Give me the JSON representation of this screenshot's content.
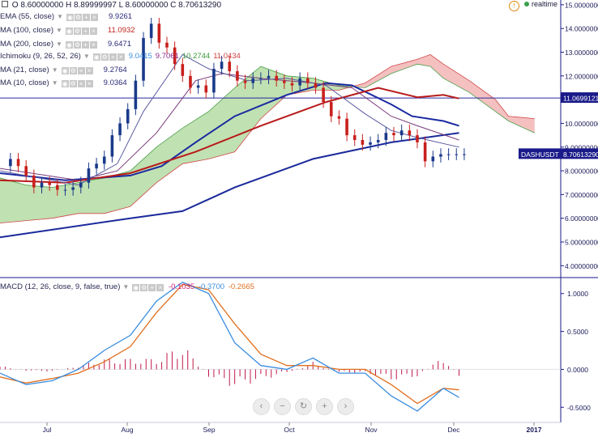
{
  "ohlc": {
    "open": "O 8.60000000",
    "high": "H 8.89999997",
    "low": "L 8.60000000",
    "close": "C 8.70613290"
  },
  "realtime": "realtime",
  "legend": [
    {
      "name": "EMA (55, close)",
      "value": "9.9261",
      "color": "#2a2a7a"
    },
    {
      "name": "MA (100, close)",
      "value": "11.0932",
      "color": "#c0221c"
    },
    {
      "name": "MA (200, close)",
      "value": "9.6471",
      "color": "#2a2a7a"
    },
    {
      "name": "Ichimoku (9, 26, 52, 26)",
      "values": [
        "9.0415",
        "9.7061",
        "10.2744",
        "11.0434"
      ],
      "colors": [
        "#3a8ee0",
        "#8e2a8e",
        "#3a9a3a",
        "#d04040"
      ]
    },
    {
      "name": "MA (21, close)",
      "value": "9.2764",
      "color": "#2a2a7a"
    },
    {
      "name": "MA (10, close)",
      "value": "9.0364",
      "color": "#2a2a7a"
    }
  ],
  "macd_legend": {
    "name": "MACD (12, 26, close, 9, false, true)",
    "values": [
      "-0.1035",
      "-0.3700",
      "-0.2665"
    ],
    "colors": [
      "#d02070",
      "#3a8ee0",
      "#e07020"
    ]
  },
  "price_labels": {
    "hline": "11.0699121",
    "symbol": "DASHUSDT",
    "last": "8.70613290"
  },
  "nav_buttons": [
    "‹",
    "−",
    "↻",
    "+",
    "›"
  ],
  "colors": {
    "candle_up": "#1a3a8a",
    "candle_down": "#c8201c",
    "ema55": "#1a2aa0",
    "ma100": "#b81a1a",
    "ma200": "#1a2a9a",
    "ma21": "#7a3a7a",
    "ma10": "#5a5aa0",
    "cloud_bull": "#b5dca5",
    "cloud_bear": "#f2b5b5",
    "macd_line": "#3a8ee0",
    "signal_line": "#e07020",
    "hist": "#c01a4a",
    "axis": "#1a1a8a"
  },
  "chart_data": [
    {
      "type": "line",
      "name": "DASHUSDT price",
      "x_ticks": [
        "Jul",
        "Aug",
        "Sep",
        "Oct",
        "Nov",
        "Dec",
        "2017"
      ],
      "y_ticks": [
        "4.00000000",
        "5.00000000",
        "6.00000000",
        "7.00000000",
        "8.00000000",
        "9.00000000",
        "10.0000000",
        "11.0000000",
        "12.0000000",
        "13.0000000",
        "14.0000000",
        "15.0000000"
      ],
      "ylim": [
        3.5,
        15.2
      ],
      "x": [
        1,
        4,
        7,
        10,
        13,
        16,
        19,
        22,
        25,
        28,
        31,
        34,
        37,
        40,
        43,
        46,
        49,
        52,
        55,
        58,
        61,
        64,
        67,
        70,
        73,
        76,
        79,
        82,
        85,
        88,
        91,
        94,
        97,
        100,
        103,
        106,
        109,
        112,
        115,
        118,
        121,
        124,
        127,
        130,
        133,
        136,
        139,
        142,
        145,
        148,
        151,
        154,
        157,
        160,
        163,
        166,
        169,
        172,
        175,
        178
      ],
      "close": [
        8.2,
        8.5,
        8.2,
        7.8,
        7.3,
        7.5,
        7.4,
        7.2,
        7.2,
        7.3,
        7.5,
        8.1,
        8.3,
        8.6,
        9.5,
        10.0,
        10.6,
        11.8,
        13.6,
        14.2,
        13.4,
        13.2,
        12.5,
        12.0,
        11.5,
        11.6,
        11.3,
        12.3,
        12.6,
        12.2,
        11.8,
        11.7,
        11.9,
        11.9,
        12.0,
        11.8,
        11.7,
        11.6,
        11.9,
        11.7,
        11.5,
        10.9,
        10.3,
        10.2,
        9.5,
        9.3,
        9.1,
        9.2,
        9.3,
        9.6,
        9.5,
        9.7,
        9.5,
        9.2,
        8.4,
        8.6,
        8.7,
        8.7,
        8.7,
        8.7
      ],
      "hline": 11.0699121,
      "last": 8.7061329,
      "series": [
        {
          "name": "EMA (55, close)",
          "x": [
            0,
            25,
            50,
            62,
            75,
            90,
            110,
            125,
            135,
            150,
            158,
            170,
            176
          ],
          "values": [
            7.9,
            7.6,
            7.8,
            8.2,
            9.2,
            10.3,
            11.2,
            11.7,
            11.6,
            10.8,
            10.3,
            10.1,
            9.9
          ]
        },
        {
          "name": "MA (100, close)",
          "x": [
            0,
            25,
            50,
            75,
            100,
            125,
            145,
            160,
            170,
            176
          ],
          "values": [
            7.6,
            7.5,
            7.9,
            8.8,
            9.9,
            10.9,
            11.5,
            11.1,
            11.2,
            11.05
          ]
        },
        {
          "name": "MA (200, close)",
          "x": [
            0,
            50,
            70,
            90,
            120,
            150,
            176
          ],
          "values": [
            5.2,
            6.0,
            6.3,
            7.3,
            8.5,
            9.2,
            9.6
          ]
        },
        {
          "name": "MA (21, close)",
          "x": [
            0,
            30,
            45,
            60,
            75,
            85,
            100,
            120,
            135,
            150,
            160,
            176
          ],
          "values": [
            8.1,
            7.6,
            8.0,
            9.6,
            11.8,
            12.1,
            11.9,
            11.7,
            11.5,
            10.3,
            9.9,
            9.3
          ]
        },
        {
          "name": "MA (10, close)",
          "x": [
            0,
            30,
            45,
            55,
            70,
            80,
            95,
            110,
            125,
            140,
            150,
            160,
            176
          ],
          "values": [
            8.0,
            7.4,
            8.3,
            10.5,
            12.9,
            12.3,
            11.8,
            11.9,
            11.6,
            10.4,
            9.7,
            9.4,
            9.0
          ]
        }
      ],
      "ichimoku_cloud": {
        "x": [
          0,
          10,
          20,
          30,
          40,
          50,
          60,
          70,
          80,
          90,
          100,
          110,
          120,
          130,
          140,
          150,
          160,
          165,
          170,
          180,
          190,
          195,
          205
        ],
        "span_a": [
          7.7,
          7.4,
          7.3,
          7.5,
          7.7,
          8.0,
          9.0,
          9.8,
          10.5,
          11.5,
          12.4,
          12.0,
          11.9,
          11.6,
          11.5,
          12.1,
          12.5,
          12.4,
          11.9,
          11.3,
          10.5,
          10.1,
          9.6
        ],
        "span_b": [
          5.8,
          5.9,
          6.0,
          6.2,
          6.2,
          6.5,
          7.5,
          8.3,
          8.5,
          8.8,
          10.2,
          11.2,
          11.4,
          11.4,
          11.7,
          12.4,
          12.7,
          12.9,
          12.5,
          11.8,
          11.0,
          10.3,
          10.2
        ]
      }
    },
    {
      "type": "bar",
      "name": "MACD (12, 26, close, 9, false, true)",
      "y_ticks": [
        "-0.5000",
        "0.0000",
        "0.5000",
        "1.0000"
      ],
      "ylim": [
        -0.7,
        1.2
      ],
      "x": [
        0,
        10,
        20,
        30,
        40,
        50,
        60,
        70,
        80,
        90,
        100,
        110,
        120,
        130,
        140,
        150,
        160,
        170,
        176
      ],
      "macd": [
        -0.05,
        -0.2,
        -0.15,
        0.0,
        0.25,
        0.45,
        0.9,
        1.15,
        1.0,
        0.35,
        0.05,
        0.0,
        0.15,
        -0.05,
        -0.05,
        -0.35,
        -0.55,
        -0.25,
        -0.37
      ],
      "signal": [
        -0.1,
        -0.18,
        -0.12,
        -0.05,
        0.1,
        0.3,
        0.75,
        1.12,
        1.05,
        0.6,
        0.2,
        0.05,
        0.05,
        0.0,
        0.0,
        -0.2,
        -0.45,
        -0.25,
        -0.27
      ],
      "histogram": [
        0.05,
        -0.02,
        -0.03,
        0.05,
        0.15,
        0.15,
        0.15,
        0.35,
        -0.1,
        -0.25,
        -0.15,
        -0.05,
        0.1,
        -0.05,
        -0.05,
        -0.15,
        -0.1,
        0.18,
        -0.1
      ]
    }
  ]
}
